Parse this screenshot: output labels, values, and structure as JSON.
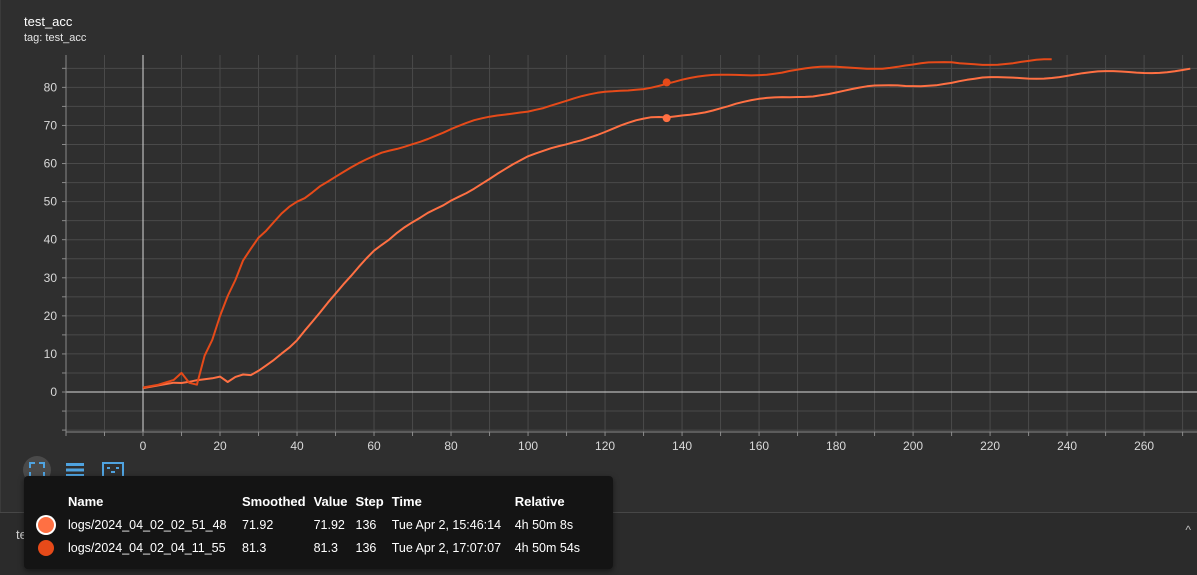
{
  "card": {
    "title": "test_acc",
    "tag": "tag: test_acc"
  },
  "next_card": {
    "title": "test_loss",
    "chevron": "^"
  },
  "toolbar": {
    "buttons": [
      {
        "name": "fit-domain-icon",
        "active": true
      },
      {
        "name": "toggle-log-scale-icon",
        "active": false
      },
      {
        "name": "download-icon",
        "active": false
      }
    ]
  },
  "tooltip": {
    "headers": [
      "",
      "Name",
      "Smoothed",
      "Value",
      "Step",
      "Time",
      "Relative"
    ],
    "rows": [
      {
        "color": "#ff7043",
        "name": "logs/2024_04_02_02_51_48",
        "smoothed": "71.92",
        "value": "71.92",
        "step": "136",
        "time": "Tue Apr 2, 15:46:14",
        "relative": "4h 50m 8s"
      },
      {
        "color": "#e64a19",
        "name": "logs/2024_04_02_04_11_55",
        "smoothed": "81.3",
        "value": "81.3",
        "step": "136",
        "time": "Tue Apr 2, 17:07:07",
        "relative": "4h 50m 54s"
      }
    ]
  },
  "chart_data": {
    "type": "line",
    "title": "test_acc",
    "xlabel": "",
    "ylabel": "",
    "xlim": [
      -20,
      274
    ],
    "ylim": [
      -10.5,
      88.5
    ],
    "xticks": [
      0,
      20,
      40,
      60,
      80,
      100,
      120,
      140,
      160,
      180,
      200,
      220,
      240,
      260
    ],
    "yticks": [
      0,
      10,
      20,
      30,
      40,
      50,
      60,
      70,
      80
    ],
    "grid": true,
    "hover_step": 136,
    "series": [
      {
        "name": "logs/2024_04_02_02_51_48",
        "color": "#ff7043",
        "x": [
          0,
          4,
          8,
          10,
          12,
          14,
          16,
          18,
          20,
          22,
          24,
          26,
          28,
          30,
          32,
          34,
          36,
          38,
          40,
          42,
          44,
          46,
          48,
          50,
          52,
          54,
          56,
          58,
          60,
          62,
          64,
          66,
          68,
          70,
          72,
          74,
          76,
          78,
          80,
          82,
          84,
          86,
          88,
          90,
          92,
          94,
          96,
          98,
          100,
          102,
          104,
          106,
          108,
          110,
          112,
          114,
          116,
          118,
          120,
          122,
          124,
          126,
          128,
          130,
          132,
          134,
          136,
          138,
          140,
          142,
          144,
          146,
          148,
          150,
          152,
          154,
          156,
          158,
          160,
          162,
          164,
          166,
          168,
          170,
          172,
          174,
          176,
          178,
          180,
          182,
          184,
          186,
          188,
          190,
          192,
          194,
          196,
          198,
          200,
          202,
          204,
          206,
          208,
          210,
          212,
          214,
          216,
          218,
          220,
          222,
          224,
          226,
          228,
          230,
          232,
          234,
          236,
          238,
          240,
          242,
          244,
          246,
          248,
          250,
          252,
          254,
          256,
          258,
          260,
          262,
          264,
          266,
          268,
          270,
          272
        ],
        "y": [
          1.0,
          1.5,
          2.0,
          1.8,
          2.1,
          2.6,
          3.0,
          3.5,
          4.2,
          3.0,
          4.5,
          5.2,
          5.0,
          6.0,
          7.2,
          8.4,
          9.8,
          11.2,
          13.0,
          15.5,
          18.0,
          20.6,
          23.4,
          26.0,
          28.6,
          31.0,
          33.4,
          35.6,
          37.5,
          38.8,
          40.0,
          41.5,
          42.8,
          44.0,
          45.2,
          46.6,
          47.8,
          49.0,
          50.5,
          51.7,
          52.8,
          54.0,
          55.2,
          56.3,
          57.4,
          58.4,
          59.4,
          60.3,
          61.3,
          62.1,
          62.9,
          63.8,
          64.6,
          65.3,
          66.1,
          66.7,
          67.4,
          68.0,
          68.6,
          69.2,
          69.8,
          70.3,
          70.8,
          71.2,
          71.6,
          71.8,
          71.92,
          72.4,
          72.9,
          73.3,
          73.7,
          74.0,
          74.4,
          74.8,
          75.1,
          75.5,
          75.8,
          76.1,
          76.4,
          76.7,
          77.0,
          77.3,
          77.5,
          77.8,
          78.0,
          78.2,
          78.5,
          78.7,
          78.9,
          79.1,
          79.3,
          79.5,
          79.7,
          79.9,
          80.0,
          80.2,
          80.4,
          80.5,
          80.7,
          80.8,
          81.0,
          81.1,
          81.3,
          81.4,
          81.6,
          81.7,
          81.8,
          82.0,
          82.1,
          82.2,
          82.3,
          82.5,
          82.6,
          82.7,
          82.8,
          82.9,
          83.0,
          83.1,
          83.2,
          83.3,
          83.4,
          83.5,
          83.6,
          83.7,
          83.8,
          83.9,
          84.0,
          84.1,
          84.2,
          84.3,
          84.4,
          84.5,
          84.6,
          84.7,
          84.8
        ]
      },
      {
        "name": "logs/2024_04_02_04_11_55",
        "color": "#e64a19",
        "x": [
          0,
          4,
          8,
          10,
          12,
          14,
          16,
          18,
          20,
          22,
          24,
          26,
          28,
          30,
          32,
          34,
          36,
          38,
          40,
          42,
          44,
          46,
          48,
          50,
          52,
          54,
          56,
          58,
          60,
          62,
          64,
          66,
          68,
          70,
          72,
          74,
          76,
          78,
          80,
          82,
          84,
          86,
          88,
          90,
          92,
          94,
          96,
          98,
          100,
          102,
          104,
          106,
          108,
          110,
          112,
          114,
          116,
          118,
          120,
          122,
          124,
          126,
          128,
          130,
          132,
          134,
          136,
          138,
          140,
          142,
          144,
          146,
          148,
          150,
          152,
          154,
          156,
          158,
          160,
          162,
          164,
          166,
          168,
          170,
          172,
          174,
          176,
          178,
          180,
          182,
          184,
          186,
          188,
          190,
          192,
          194,
          196,
          198,
          200,
          202,
          204,
          206,
          208,
          210,
          212,
          214,
          216,
          218,
          220,
          222,
          224,
          226,
          228,
          230,
          232,
          234,
          236
        ],
        "y": [
          1.0,
          2.0,
          3.5,
          5.5,
          3.0,
          2.5,
          10.0,
          14.0,
          20.0,
          25.0,
          29.0,
          34.0,
          37.0,
          40.0,
          42.0,
          44.5,
          47.0,
          49.0,
          50.5,
          51.5,
          53.0,
          54.5,
          55.5,
          56.5,
          57.5,
          58.5,
          59.5,
          60.5,
          61.5,
          62.5,
          63.3,
          64.0,
          64.8,
          65.6,
          66.3,
          67.0,
          67.7,
          68.3,
          69.0,
          69.6,
          70.2,
          70.8,
          71.3,
          71.8,
          72.3,
          72.8,
          73.3,
          73.8,
          74.2,
          74.7,
          75.1,
          75.6,
          76.0,
          76.4,
          76.8,
          77.2,
          77.6,
          78.0,
          78.4,
          78.7,
          79.1,
          79.4,
          79.8,
          80.1,
          80.5,
          80.9,
          81.3,
          81.6,
          81.9,
          82.1,
          82.3,
          82.5,
          82.7,
          82.9,
          83.1,
          83.3,
          83.5,
          83.6,
          83.8,
          83.9,
          84.1,
          84.2,
          84.4,
          84.5,
          84.6,
          84.7,
          84.8,
          84.9,
          85.0,
          85.1,
          85.2,
          85.3,
          85.4,
          85.5,
          85.5,
          85.6,
          85.7,
          85.8,
          85.8,
          85.9,
          86.0,
          86.0,
          86.1,
          86.2,
          86.2,
          86.3,
          86.4,
          86.4,
          86.5,
          86.5,
          86.6,
          86.6,
          86.7,
          86.7,
          86.8,
          86.8,
          86.8
        ]
      }
    ]
  }
}
